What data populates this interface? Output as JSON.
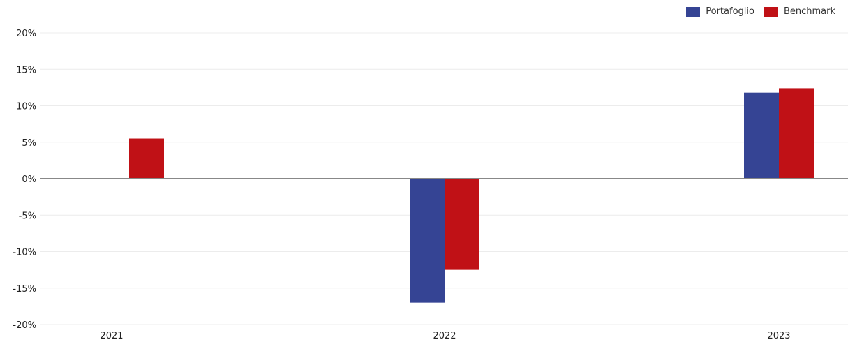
{
  "chart_data": {
    "type": "bar",
    "categories": [
      "2021",
      "2022",
      "2023"
    ],
    "series": [
      {
        "name": "Portafoglio",
        "values": [
          null,
          -17.0,
          11.8
        ],
        "color": "#354494"
      },
      {
        "name": "Benchmark",
        "values": [
          5.5,
          -12.5,
          12.4
        ],
        "color": "#c01116"
      }
    ],
    "ylim": [
      -20,
      20
    ],
    "yticks": [
      20,
      15,
      10,
      5,
      0,
      -5,
      -10,
      -15,
      -20
    ],
    "ytick_labels": [
      "20%",
      "15%",
      "10%",
      "5%",
      "0%",
      "-5%",
      "-10%",
      "-15%",
      "-20%"
    ],
    "grid": true,
    "legend_position": "top-right",
    "zero_line_color": "#888888",
    "grid_color": "#ececec"
  }
}
